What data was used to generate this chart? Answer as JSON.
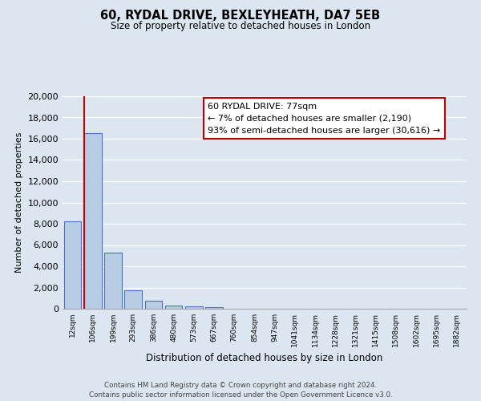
{
  "title": "60, RYDAL DRIVE, BEXLEYHEATH, DA7 5EB",
  "subtitle": "Size of property relative to detached houses in London",
  "xlabel": "Distribution of detached houses by size in London",
  "ylabel": "Number of detached properties",
  "bar_values": [
    8200,
    16500,
    5300,
    1750,
    750,
    300,
    200,
    150,
    0,
    0,
    0,
    0,
    0,
    0,
    0,
    0,
    0,
    0,
    0,
    0
  ],
  "categories": [
    "12sqm",
    "106sqm",
    "199sqm",
    "293sqm",
    "386sqm",
    "480sqm",
    "573sqm",
    "667sqm",
    "760sqm",
    "854sqm",
    "947sqm",
    "1041sqm",
    "1134sqm",
    "1228sqm",
    "1321sqm",
    "1415sqm",
    "1508sqm",
    "1602sqm",
    "1695sqm",
    "1882sqm"
  ],
  "bar_color": "#b8cce4",
  "bar_edge_color": "#4472c4",
  "background_color": "#dce6f1",
  "plot_bg_color": "#dce6f1",
  "grid_color": "#ffffff",
  "vline_color": "#c00000",
  "vline_x": 0.575,
  "annotation_title": "60 RYDAL DRIVE: 77sqm",
  "annotation_line1": "← 7% of detached houses are smaller (2,190)",
  "annotation_line2": "93% of semi-detached houses are larger (30,616) →",
  "annotation_box_color": "#ffffff",
  "annotation_box_edge": "#c00000",
  "ylim": [
    0,
    20000
  ],
  "yticks": [
    0,
    2000,
    4000,
    6000,
    8000,
    10000,
    12000,
    14000,
    16000,
    18000,
    20000
  ],
  "footer1": "Contains HM Land Registry data © Crown copyright and database right 2024.",
  "footer2": "Contains public sector information licensed under the Open Government Licence v3.0."
}
